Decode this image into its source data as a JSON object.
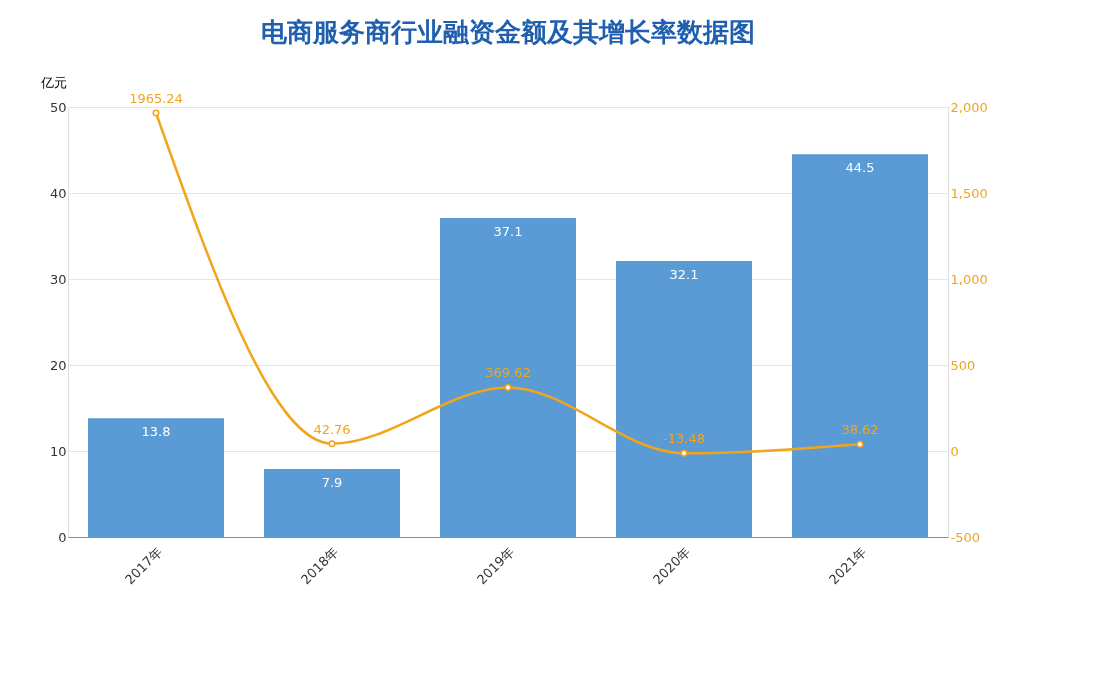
{
  "chart_data": {
    "type": "bar",
    "title": "电商服务商行业融资金额及其增长率数据图",
    "ylabel": "亿元",
    "categories": [
      "2017年",
      "2018年",
      "2019年",
      "2020年",
      "2021年"
    ],
    "series": [
      {
        "color": "#5b9bd5",
        "values": [
          13.8,
          7.9,
          37.1,
          32.1,
          44.5
        ],
        "value_labels": [
          "13.8",
          "7.9",
          "37.1",
          "32.1",
          "44.5"
        ]
      },
      {
        "type": "line",
        "axis": "y2",
        "color": "#f2a51a",
        "values": [
          1965.24,
          42.76,
          369.62,
          -13.48,
          38.62
        ],
        "value_labels": [
          "1965.24",
          "42.76",
          "369.62",
          "-13.48",
          "38.62"
        ],
        "marker": "circle"
      }
    ],
    "ylim": [
      0,
      50
    ],
    "yticks": [
      0,
      10,
      20,
      30,
      40,
      50
    ],
    "y2lim": [
      -500,
      2000
    ],
    "y2ticks": [
      -500,
      0,
      500,
      {
        "value": 1000,
        "label": "1,000"
      },
      {
        "value": 1500,
        "label": "1,500"
      },
      {
        "value": 2000,
        "label": "2,000"
      }
    ],
    "grid": "y"
  }
}
